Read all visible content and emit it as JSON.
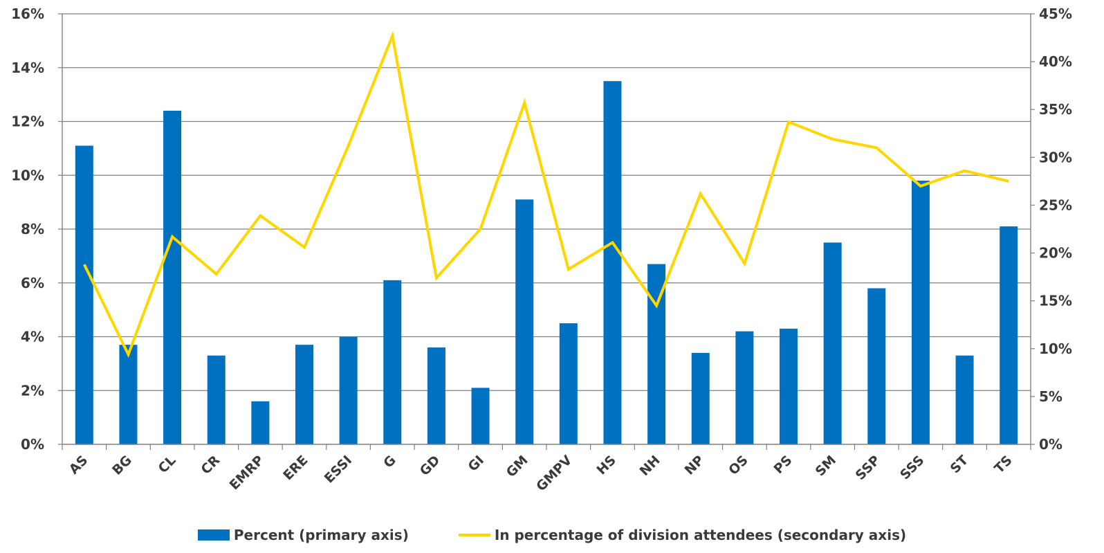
{
  "colors": {
    "bar": "#0070c0",
    "line": "#ffd700",
    "grid": "#7f7f7f",
    "axis": "#7f7f7f",
    "text": "#3a3a3a"
  },
  "chart_data": {
    "type": "bar",
    "categories": [
      "AS",
      "BG",
      "CL",
      "CR",
      "EMRP",
      "ERE",
      "ESSI",
      "G",
      "GD",
      "GI",
      "GM",
      "GMPV",
      "HS",
      "NH",
      "NP",
      "OS",
      "PS",
      "SM",
      "SSP",
      "SSS",
      "ST",
      "TS"
    ],
    "series": [
      {
        "name": "Percent (primary axis)",
        "type": "bar",
        "axis": "primary",
        "values": [
          11.1,
          3.7,
          12.4,
          3.3,
          1.6,
          3.7,
          4.0,
          6.1,
          3.6,
          2.1,
          9.1,
          4.5,
          13.5,
          6.7,
          3.4,
          4.2,
          4.3,
          7.5,
          5.8,
          9.8,
          3.3,
          8.1
        ]
      },
      {
        "name": "In percentage of division attendees (secondary axis)",
        "type": "line",
        "axis": "secondary",
        "values": [
          18.8,
          9.4,
          21.7,
          17.8,
          23.9,
          20.6,
          31.2,
          42.7,
          17.4,
          22.5,
          35.7,
          18.3,
          21.1,
          14.5,
          26.2,
          18.9,
          33.7,
          31.9,
          31.0,
          27.0,
          28.6,
          27.5
        ]
      }
    ],
    "ylim": [
      0,
      16
    ],
    "y2lim": [
      0,
      45
    ],
    "y_ticks": [
      "0%",
      "2%",
      "4%",
      "6%",
      "8%",
      "10%",
      "12%",
      "14%",
      "16%"
    ],
    "y2_ticks": [
      "0%",
      "5%",
      "10%",
      "15%",
      "20%",
      "25%",
      "30%",
      "35%",
      "40%",
      "45%"
    ],
    "grid": true,
    "legend": "bottom-center"
  }
}
